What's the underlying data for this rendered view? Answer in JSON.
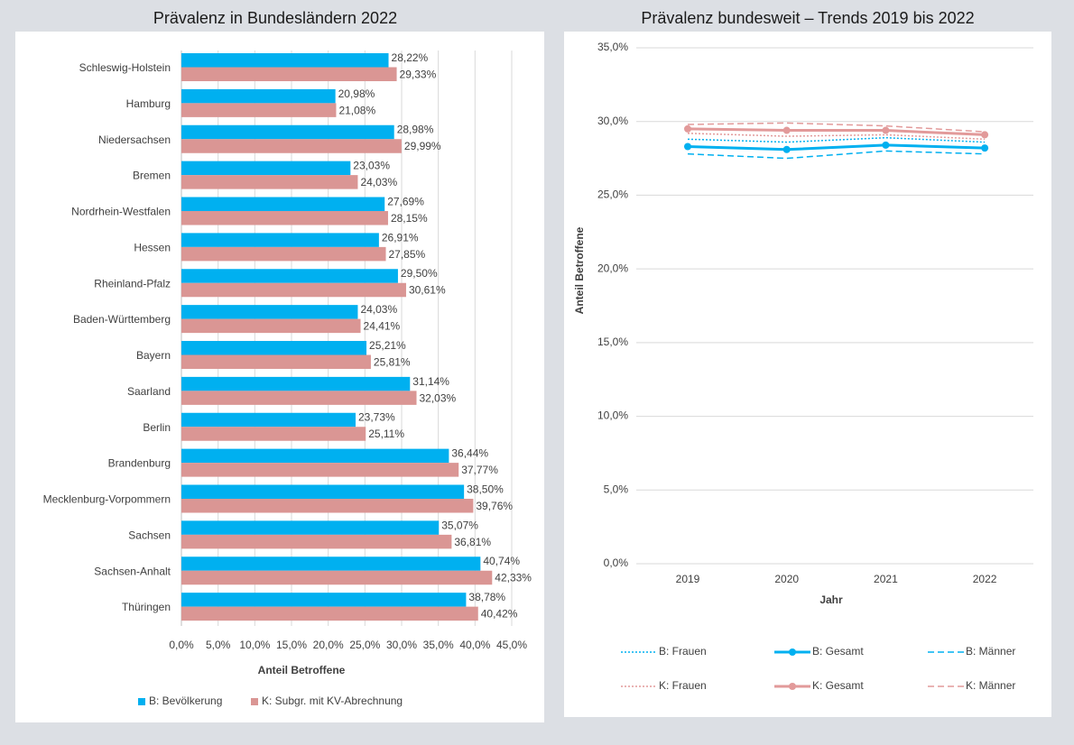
{
  "chart_data": [
    {
      "type": "hbar",
      "title": "Prävalenz in Bundesländern 2022",
      "xlabel": "Anteil Betroffene",
      "categories": [
        "Schleswig-Holstein",
        "Hamburg",
        "Niedersachsen",
        "Bremen",
        "Nordrhein-Westfalen",
        "Hessen",
        "Rheinland-Pfalz",
        "Baden-Württemberg",
        "Bayern",
        "Saarland",
        "Berlin",
        "Brandenburg",
        "Mecklenburg-Vorpommern",
        "Sachsen",
        "Sachsen-Anhalt",
        "Thüringen"
      ],
      "series": [
        {
          "name": "B: Bevölkerung",
          "color": "#00b0f0",
          "values": [
            28.22,
            20.98,
            28.98,
            23.03,
            27.69,
            26.91,
            29.5,
            24.03,
            25.21,
            31.14,
            23.73,
            36.44,
            38.5,
            35.07,
            40.74,
            38.78
          ],
          "value_labels": [
            "28,22%",
            "20,98%",
            "28,98%",
            "23,03%",
            "27,69%",
            "26,91%",
            "29,50%",
            "24,03%",
            "25,21%",
            "31,14%",
            "23,73%",
            "36,44%",
            "38,50%",
            "35,07%",
            "40,74%",
            "38,78%"
          ]
        },
        {
          "name": "K: Subgr. mit KV-Abrechnung",
          "color": "#da9694",
          "values": [
            29.33,
            21.08,
            29.99,
            24.03,
            28.15,
            27.85,
            30.61,
            24.41,
            25.81,
            32.03,
            25.11,
            37.77,
            39.76,
            36.81,
            42.33,
            40.42
          ],
          "value_labels": [
            "29,33%",
            "21,08%",
            "29,99%",
            "24,03%",
            "28,15%",
            "27,85%",
            "30,61%",
            "24,41%",
            "25,81%",
            "32,03%",
            "25,11%",
            "37,77%",
            "39,76%",
            "36,81%",
            "42,33%",
            "40,42%"
          ]
        }
      ],
      "xlim": [
        0,
        45
      ],
      "xticks": [
        {
          "value": 0,
          "label": "0,0%"
        },
        {
          "value": 5,
          "label": "5,0%"
        },
        {
          "value": 10,
          "label": "10,0%"
        },
        {
          "value": 15,
          "label": "15,0%"
        },
        {
          "value": 20,
          "label": "20,0%"
        },
        {
          "value": 25,
          "label": "25,0%"
        },
        {
          "value": 30,
          "label": "30,0%"
        },
        {
          "value": 35,
          "label": "35,0%"
        },
        {
          "value": 40,
          "label": "40,0%"
        },
        {
          "value": 45,
          "label": "45,0%"
        }
      ],
      "grid": true,
      "legend": "bottom"
    },
    {
      "type": "line",
      "title": "Prävalenz bundesweit – Trends 2019 bis 2022",
      "xlabel": "Jahr",
      "ylabel": "Anteil Betroffene",
      "categories": [
        "2019",
        "2020",
        "2021",
        "2022"
      ],
      "series": [
        {
          "name": "B: Frauen",
          "color": "#00b0f0",
          "style": "dotted",
          "marker": false,
          "values": [
            28.8,
            28.6,
            28.9,
            28.6
          ]
        },
        {
          "name": "B: Gesamt",
          "color": "#00b0f0",
          "style": "solid",
          "marker": true,
          "values": [
            28.3,
            28.1,
            28.4,
            28.2
          ]
        },
        {
          "name": "B: Männer",
          "color": "#00b0f0",
          "style": "dashed",
          "marker": false,
          "values": [
            27.8,
            27.5,
            28.0,
            27.8
          ]
        },
        {
          "name": "K: Frauen",
          "color": "#e29a9a",
          "style": "dotted",
          "marker": false,
          "values": [
            29.2,
            29.0,
            29.1,
            28.8
          ]
        },
        {
          "name": "K: Gesamt",
          "color": "#e29a9a",
          "style": "solid",
          "marker": true,
          "values": [
            29.5,
            29.4,
            29.4,
            29.1
          ]
        },
        {
          "name": "K: Männer",
          "color": "#e29a9a",
          "style": "dashed",
          "marker": false,
          "values": [
            29.8,
            29.9,
            29.7,
            29.3
          ]
        }
      ],
      "ylim": [
        0,
        35
      ],
      "yticks": [
        {
          "value": 0,
          "label": "0,0%"
        },
        {
          "value": 5,
          "label": "5,0%"
        },
        {
          "value": 10,
          "label": "10,0%"
        },
        {
          "value": 15,
          "label": "15,0%"
        },
        {
          "value": 20,
          "label": "20,0%"
        },
        {
          "value": 25,
          "label": "25,0%"
        },
        {
          "value": 30,
          "label": "30,0%"
        },
        {
          "value": 35,
          "label": "35,0%"
        }
      ],
      "grid": true,
      "legend": "bottom"
    }
  ]
}
